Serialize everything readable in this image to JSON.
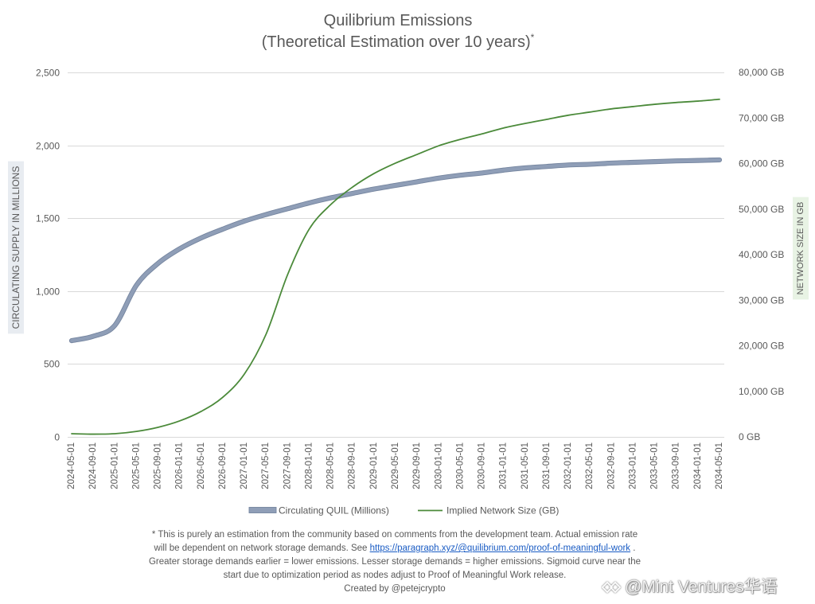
{
  "chart_data": {
    "type": "line",
    "title": "Quilibrium Emissions",
    "subtitle": "(Theoretical Estimation over 10 years)",
    "subtitle_mark": "*",
    "x": [
      "2024-05-01",
      "2024-09-01",
      "2025-01-01",
      "2025-05-01",
      "2025-09-01",
      "2026-01-01",
      "2026-05-01",
      "2026-09-01",
      "2027-01-01",
      "2027-05-01",
      "2027-09-01",
      "2028-01-01",
      "2028-05-01",
      "2028-09-01",
      "2029-01-01",
      "2029-05-01",
      "2029-09-01",
      "2030-01-01",
      "2030-05-01",
      "2030-09-01",
      "2031-01-01",
      "2031-05-01",
      "2031-09-01",
      "2032-01-01",
      "2032-05-01",
      "2032-09-01",
      "2033-01-01",
      "2033-05-01",
      "2033-09-01",
      "2034-01-01",
      "2034-05-01"
    ],
    "series": [
      {
        "name": "Circulating QUIL (Millions)",
        "axis": "left",
        "color": "#8f9eb7",
        "values": [
          660,
          690,
          765,
          1040,
          1190,
          1290,
          1365,
          1425,
          1480,
          1525,
          1565,
          1605,
          1640,
          1670,
          1700,
          1725,
          1750,
          1775,
          1795,
          1810,
          1830,
          1845,
          1855,
          1865,
          1870,
          1878,
          1883,
          1888,
          1893,
          1896,
          1900
        ]
      },
      {
        "name": "Implied Network Size (GB)",
        "axis": "right",
        "color": "#4b8a3a",
        "values": [
          700,
          600,
          700,
          1200,
          2100,
          3500,
          5600,
          8700,
          13800,
          22500,
          35600,
          45600,
          51000,
          54800,
          57800,
          60100,
          62000,
          63900,
          65300,
          66500,
          67800,
          68800,
          69700,
          70600,
          71300,
          72000,
          72500,
          73000,
          73400,
          73700,
          74100
        ]
      }
    ],
    "ylabel": "CIRCULATING SUPPLY IN MILLIONS",
    "ylim": [
      0,
      2500
    ],
    "yticks": [
      {
        "value": 0,
        "label": "0"
      },
      {
        "value": 500,
        "label": "500"
      },
      {
        "value": 1000,
        "label": "1,000"
      },
      {
        "value": 1500,
        "label": "1,500"
      },
      {
        "value": 2000,
        "label": "2,000"
      },
      {
        "value": 2500,
        "label": "2,500"
      }
    ],
    "y2label": "NETWORK SIZE IN GB",
    "y2lim": [
      0,
      80000
    ],
    "y2ticks": [
      {
        "value": 0,
        "label": "0 GB"
      },
      {
        "value": 10000,
        "label": "10,000 GB"
      },
      {
        "value": 20000,
        "label": "20,000 GB"
      },
      {
        "value": 30000,
        "label": "30,000 GB"
      },
      {
        "value": 40000,
        "label": "40,000 GB"
      },
      {
        "value": 50000,
        "label": "50,000 GB"
      },
      {
        "value": 60000,
        "label": "60,000 GB"
      },
      {
        "value": 70000,
        "label": "70,000 GB"
      },
      {
        "value": 80000,
        "label": "80,000 GB"
      }
    ],
    "grid": true,
    "legend": "bottom"
  },
  "footnote": {
    "line1": "* This is purely an estimation from the community based on comments from the development team. Actual emission rate",
    "line2_pre": "will be dependent on network storage demands. See",
    "link": "https://paragraph.xyz/@quilibrium.com/proof-of-meaningful-work",
    "line2_post": ".",
    "line3": "Greater storage demands earlier = lower emissions. Lesser storage demands = higher emissions. Sigmoid curve near the",
    "line4": "start due to optimization period as nodes adjust to Proof of Meaningful Work release.",
    "credit": "Created by @petejcrypto"
  },
  "watermark": {
    "text": "@Mint Ventures华语",
    "logo_icon": "mint-ventures-logo-icon"
  },
  "theme": {
    "text": "#595959",
    "grid": "#d9d9d9",
    "link": "#1a5cc4",
    "ylabel_bg": "#e8ecf1",
    "y2label_bg": "#e8f3e4",
    "primary_outline": "#75859f"
  }
}
